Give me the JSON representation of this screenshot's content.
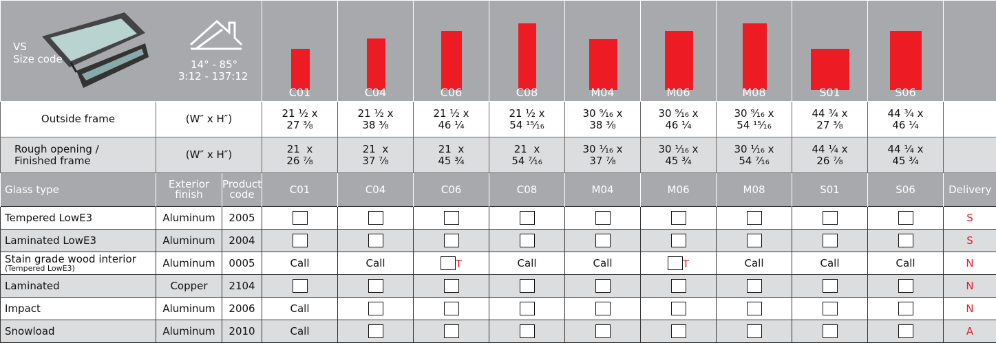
{
  "header": {
    "series": "VS",
    "size_code_label": "Size code",
    "slope_degrees": "14° - 85°",
    "slope_pitch": "3:12 - 137:12",
    "sizes": [
      "C01",
      "C04",
      "C06",
      "C08",
      "M04",
      "M06",
      "M08",
      "S01",
      "S06"
    ]
  },
  "outside_frame": {
    "label": "Outside frame",
    "unit": "(W″ x H″)",
    "values": [
      [
        "21 ¹⁄₂ x",
        "27 ³⁄₈"
      ],
      [
        "21 ¹⁄₂ x",
        "38 ³⁄₈"
      ],
      [
        "21 ¹⁄₂ x",
        "46 ¹⁄₄"
      ],
      [
        "21 ¹⁄₂ x",
        "54 ¹⁵⁄₁₆"
      ],
      [
        "30 ⁹⁄₁₆ x",
        "38 ³⁄₈"
      ],
      [
        "30 ⁹⁄₁₆ x",
        "46 ¹⁄₄"
      ],
      [
        "30 ⁹⁄₁₆ x",
        "54 ¹⁵⁄₁₆"
      ],
      [
        "44 ³⁄₄ x",
        "27 ³⁄₈"
      ],
      [
        "44 ³⁄₄ x",
        "46 ¹⁄₄"
      ]
    ]
  },
  "rough_opening": {
    "label": [
      "Rough opening /",
      "Finished frame"
    ],
    "unit": "(W″ x H″)",
    "values": [
      [
        "21  x",
        "26 ⁷⁄₈"
      ],
      [
        "21  x",
        "37 ⁷⁄₈"
      ],
      [
        "21  x",
        "45 ³⁄₄"
      ],
      [
        "21  x",
        "54 ⁷⁄₁₆"
      ],
      [
        "30 ¹⁄₁₆ x",
        "37 ⁷⁄₈"
      ],
      [
        "30 ¹⁄₁₆ x",
        "45 ³⁄₄"
      ],
      [
        "30 ¹⁄₁₆ x",
        "54 ⁷⁄₁₆"
      ],
      [
        "44 ¹⁄₄ x",
        "26 ⁷⁄₈"
      ],
      [
        "44 ¹⁄₄ x",
        "45 ³⁄₄"
      ]
    ]
  },
  "glass_table": {
    "columns": [
      "Glass type",
      "Exterior finish",
      "Product code",
      "C01",
      "C04",
      "C06",
      "C08",
      "M04",
      "M06",
      "M08",
      "S01",
      "S06",
      "Delivery"
    ],
    "rows": [
      {
        "glass_type": "Tempered LowE3",
        "finish": "Aluminum",
        "code": "2005",
        "cells": [
          null,
          null,
          null,
          null,
          null,
          null,
          null,
          null,
          null
        ],
        "delivery": "S"
      },
      {
        "glass_type": "Laminated LowE3",
        "finish": "Aluminum",
        "code": "2004",
        "cells": [
          null,
          null,
          null,
          null,
          null,
          null,
          null,
          null,
          null
        ],
        "delivery": "S"
      },
      {
        "glass_type": "Stain grade wood interior",
        "note": "(Tempered LowE3)",
        "finish": "Aluminum",
        "code": "0005",
        "cells": [
          "Call",
          "Call",
          "T",
          "Call",
          "Call",
          "T",
          "Call",
          "Call",
          "Call"
        ],
        "delivery": "N"
      },
      {
        "glass_type": "Laminated",
        "finish": "Copper",
        "code": "2104",
        "cells": [
          null,
          null,
          null,
          null,
          null,
          null,
          null,
          null,
          null
        ],
        "delivery": "N"
      },
      {
        "glass_type": "Impact",
        "finish": "Aluminum",
        "code": "2006",
        "cells": [
          "Call",
          null,
          null,
          null,
          null,
          null,
          null,
          null,
          null
        ],
        "delivery": "N"
      },
      {
        "glass_type": "Snowload",
        "finish": "Aluminum",
        "code": "2010",
        "cells": [
          "Call",
          null,
          null,
          null,
          null,
          null,
          null,
          null,
          null
        ],
        "delivery": "A"
      }
    ]
  }
}
